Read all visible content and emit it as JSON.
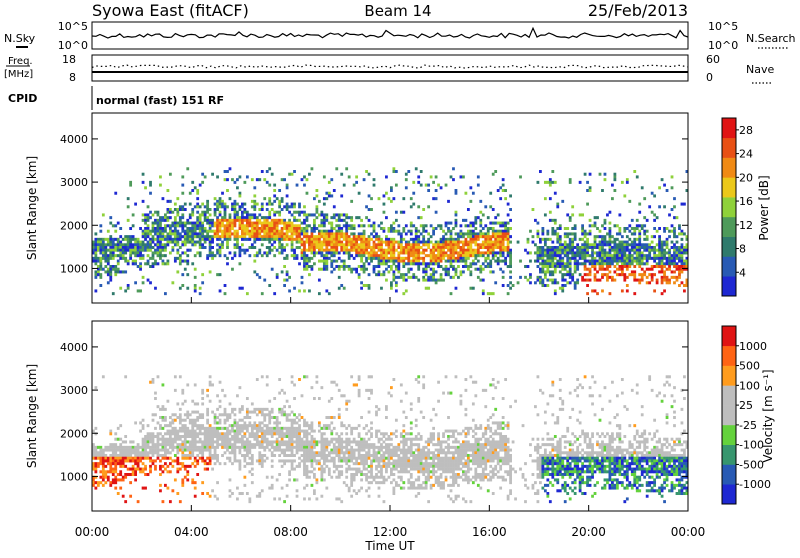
{
  "header": {
    "title": "Syowa East (fitACF)",
    "beam": "Beam 14",
    "date": "25/Feb/2013"
  },
  "noise_panel": {
    "left_label": "N.Sky",
    "right_label": "N.Search",
    "scale_top": "10^5",
    "scale_bottom": "10^0"
  },
  "freq_panel": {
    "left_label_1": "Freq.",
    "left_label_2": "[MHz]",
    "right_label": "Nave",
    "freq_top": "18",
    "freq_bottom": "8",
    "nave_top": "60",
    "nave_bottom": "0"
  },
  "cpid": {
    "label": "CPID",
    "value": "normal (fast) 151 RF"
  },
  "colors": {
    "power": [
      "#1e28d2",
      "#285ab4",
      "#2f7a6c",
      "#4e9a5a",
      "#8fd13a",
      "#ebc81a",
      "#f08a14",
      "#e85014",
      "#e01414"
    ],
    "velocity": [
      "#e01414",
      "#ff6414",
      "#ff9c1e",
      "#bebebe",
      "#bebebe",
      "#64d23c",
      "#37966e",
      "#285ab4",
      "#1e28d2"
    ]
  },
  "chart_data": [
    {
      "type": "heatmap",
      "ylabel": "Slant Range [km]",
      "y_ticks": [
        "1000",
        "2000",
        "3000",
        "4000"
      ],
      "ylim": [
        200,
        4600
      ],
      "x_ticks": [
        "00:00",
        "04:00",
        "08:00",
        "12:00",
        "16:00",
        "20:00",
        "00:00"
      ],
      "xlabel": "",
      "colorbar": {
        "label": "Power [dB]",
        "ticks": [
          "4",
          "8",
          "12",
          "16",
          "20",
          "24",
          "28"
        ],
        "range": [
          0,
          30
        ]
      }
    },
    {
      "type": "heatmap",
      "ylabel": "Slant Range [km]",
      "y_ticks": [
        "1000",
        "2000",
        "3000",
        "4000"
      ],
      "ylim": [
        200,
        4600
      ],
      "x_ticks": [
        "00:00",
        "04:00",
        "08:00",
        "12:00",
        "16:00",
        "20:00",
        "00:00"
      ],
      "xlabel": "Time UT",
      "colorbar": {
        "label": "Velocity [m s⁻¹]",
        "ticks": [
          "1000",
          "500",
          "100",
          "25",
          "-25",
          "-100",
          "-500",
          "-1000"
        ]
      }
    }
  ]
}
